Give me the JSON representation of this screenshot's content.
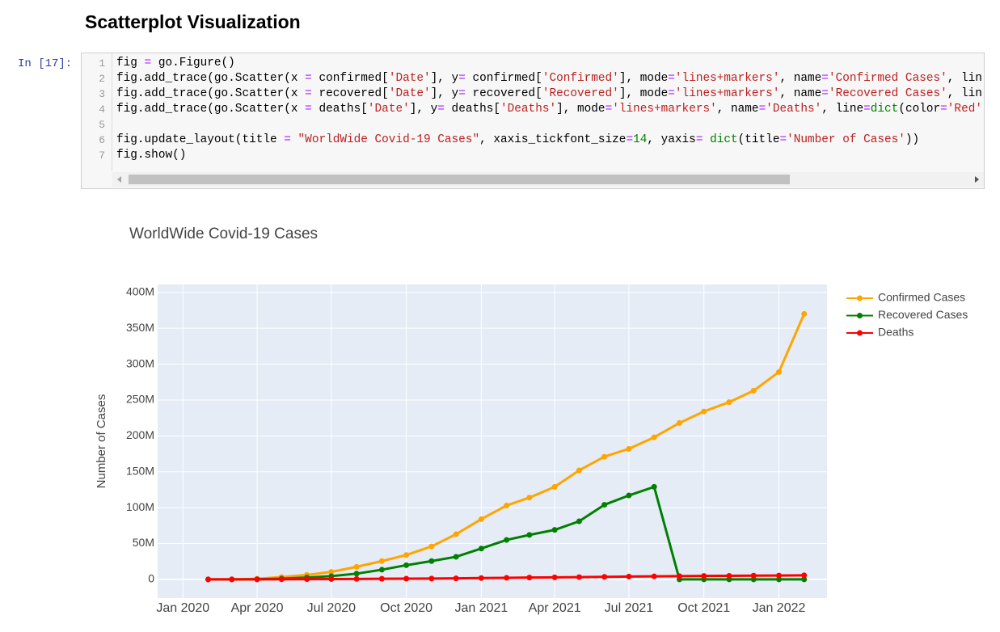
{
  "header": {
    "title": "Scatterplot Visualization"
  },
  "cell": {
    "prompt": "In [17]:",
    "lines": [
      {
        "n": 1,
        "code": "fig = go.Figure()"
      },
      {
        "n": 2,
        "code": "fig.add_trace(go.Scatter(x = confirmed['Date'], y= confirmed['Confirmed'], mode='lines+markers', name='Confirmed Cases', lin"
      },
      {
        "n": 3,
        "code": "fig.add_trace(go.Scatter(x = recovered['Date'], y= recovered['Recovered'], mode='lines+markers', name='Recovered Cases', lin"
      },
      {
        "n": 4,
        "code": "fig.add_trace(go.Scatter(x = deaths['Date'], y= deaths['Deaths'], mode='lines+markers', name='Deaths', line=dict(color='Red'"
      },
      {
        "n": 5
      },
      {
        "n": 6,
        "code": "fig.update_layout(title = \"WorldWide Covid-19 Cases\", xaxis_tickfont_size=14, yaxis= dict(title='Number of Cases'))"
      },
      {
        "n": 7,
        "code": "fig.show()"
      }
    ]
  },
  "chart_data": {
    "type": "line",
    "title": "WorldWide Covid-19 Cases",
    "y_label": "Number of Cases",
    "x": [
      "2020-02",
      "2020-03",
      "2020-04",
      "2020-05",
      "2020-06",
      "2020-07",
      "2020-08",
      "2020-09",
      "2020-10",
      "2020-11",
      "2020-12",
      "2021-01",
      "2021-02",
      "2021-03",
      "2021-04",
      "2021-05",
      "2021-06",
      "2021-07",
      "2021-08",
      "2021-09",
      "2021-10",
      "2021-11",
      "2021-12",
      "2022-01",
      "2022-02"
    ],
    "series": [
      {
        "name": "Confirmed Cases",
        "color": "#ffa500",
        "values": [
          10000,
          90000,
          900000,
          3300000,
          6200000,
          10500000,
          17500000,
          25500000,
          34000000,
          46000000,
          63000000,
          84000000,
          103000000,
          114000000,
          129000000,
          152000000,
          171000000,
          182000000,
          198000000,
          218000000,
          234000000,
          247000000,
          263000000,
          289000000,
          370000000
        ]
      },
      {
        "name": "Recovered Cases",
        "color": "#008000",
        "values": [
          0,
          30000,
          200000,
          1000000,
          2600000,
          4500000,
          8000000,
          13500000,
          19800000,
          25500000,
          31500000,
          43000000,
          55000000,
          62000000,
          69000000,
          81000000,
          104000000,
          117000000,
          129000000,
          0,
          0,
          0,
          0,
          0,
          0
        ]
      },
      {
        "name": "Deaths",
        "color": "#ff0000",
        "values": [
          0,
          3000,
          40000,
          230000,
          370000,
          510000,
          670000,
          850000,
          1010000,
          1190000,
          1460000,
          1820000,
          2220000,
          2540000,
          2850000,
          3210000,
          3570000,
          3940000,
          4210000,
          4530000,
          4810000,
          5020000,
          5220000,
          5440000,
          5640000
        ]
      }
    ],
    "xlim": [
      "2019-12",
      "2022-03"
    ],
    "xticks": [
      {
        "value": "2020-01",
        "label": "Jan 2020"
      },
      {
        "value": "2020-04",
        "label": "Apr 2020"
      },
      {
        "value": "2020-07",
        "label": "Jul 2020"
      },
      {
        "value": "2020-10",
        "label": "Oct 2020"
      },
      {
        "value": "2021-01",
        "label": "Jan 2021"
      },
      {
        "value": "2021-04",
        "label": "Apr 2021"
      },
      {
        "value": "2021-07",
        "label": "Jul 2021"
      },
      {
        "value": "2021-10",
        "label": "Oct 2021"
      },
      {
        "value": "2022-01",
        "label": "Jan 2022"
      }
    ],
    "ylim": [
      -26000000,
      411000000
    ],
    "yticks": [
      0,
      {
        "value": 50000000,
        "label": "50M"
      },
      {
        "value": 100000000,
        "label": "100M"
      },
      {
        "value": 150000000,
        "label": "150M"
      },
      {
        "value": 200000000,
        "label": "200M"
      },
      {
        "value": 250000000,
        "label": "250M"
      },
      {
        "value": 300000000,
        "label": "300M"
      },
      {
        "value": 350000000,
        "label": "350M"
      },
      {
        "value": 400000000,
        "label": "400M"
      }
    ],
    "grid": true,
    "legend": "right"
  }
}
